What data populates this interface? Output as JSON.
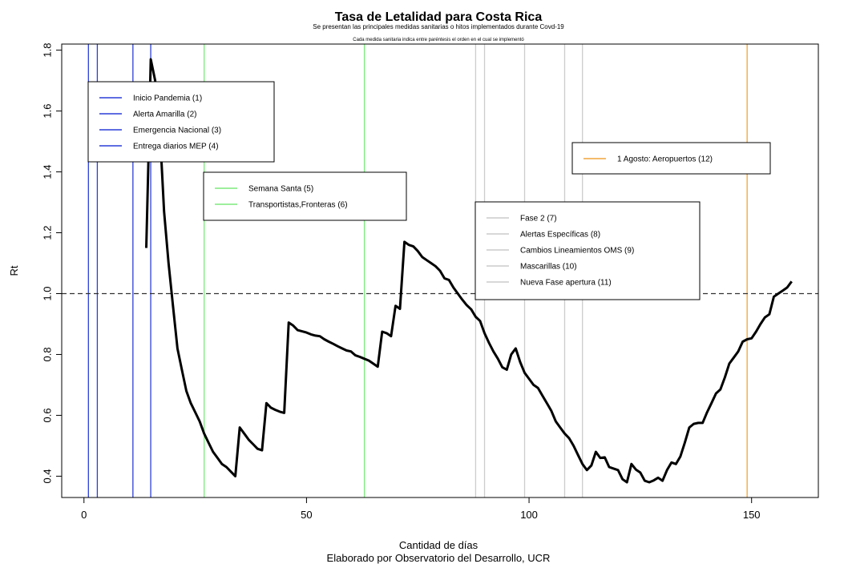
{
  "chart_data": {
    "type": "line",
    "title": "Tasa de Letalidad para Costa Rica",
    "subtitle": "Se presentan las principales medidas sanitarias o hitos implementados durante Covd-19",
    "note": "Cada medida sanitaria indica entre paréntesis el orden en el cual se implementó",
    "xlabel": "Cantidad de días",
    "caption": "Elaborado por Observatorio del Desarrollo, UCR",
    "ylabel": "Rt",
    "xlim": [
      -5,
      165
    ],
    "ylim": [
      0.33,
      1.82
    ],
    "xticks": [
      0,
      50,
      100,
      150
    ],
    "yticks": [
      0.4,
      0.6,
      0.8,
      1.0,
      1.2,
      1.4,
      1.6,
      1.8
    ],
    "xtick_labels": [
      "0",
      "50",
      "100",
      "150"
    ],
    "ytick_labels": [
      "0.4",
      "0.6",
      "0.8",
      "1.0",
      "1.2",
      "1.4",
      "1.6",
      "1.8"
    ],
    "reference_line": {
      "y": 1.0,
      "style": "dashed"
    },
    "series": [
      {
        "color": "#000000",
        "x": [
          14,
          14.5,
          15,
          16,
          17,
          18,
          19,
          20,
          21,
          22,
          23,
          24,
          25,
          26,
          27,
          28,
          29,
          30,
          31,
          32,
          33,
          34,
          35,
          36,
          37,
          38,
          39,
          40,
          41,
          42,
          43,
          44,
          45,
          46,
          47,
          48,
          49,
          50,
          51,
          52,
          53,
          54,
          55,
          56,
          57,
          58,
          59,
          60,
          61,
          62,
          63,
          64,
          65,
          66,
          67,
          68,
          69,
          70,
          71,
          72,
          73,
          74,
          75,
          76,
          77,
          78,
          79,
          80,
          81,
          82,
          83,
          84,
          85,
          86,
          87,
          88,
          89,
          90,
          91,
          92,
          93,
          94,
          95,
          96,
          97,
          98,
          99,
          100,
          101,
          102,
          103,
          104,
          105,
          106,
          107,
          108,
          109,
          110,
          111,
          112,
          113,
          114,
          115,
          116,
          117,
          118,
          119,
          120,
          121,
          122,
          123,
          124,
          125,
          126,
          127,
          128,
          129,
          130,
          131,
          132,
          133,
          134,
          135,
          136,
          137,
          138,
          139,
          140,
          141,
          142,
          143,
          144,
          145,
          146,
          147,
          148,
          149,
          150,
          151,
          152,
          153,
          154,
          155,
          156,
          157,
          158,
          159
        ],
        "y": [
          1.15,
          1.45,
          1.77,
          1.7,
          1.55,
          1.27,
          1.1,
          0.96,
          0.82,
          0.75,
          0.68,
          0.64,
          0.61,
          0.58,
          0.54,
          0.51,
          0.48,
          0.46,
          0.44,
          0.43,
          0.415,
          0.4,
          0.56,
          0.54,
          0.52,
          0.505,
          0.49,
          0.485,
          0.64,
          0.625,
          0.618,
          0.612,
          0.608,
          0.905,
          0.895,
          0.88,
          0.876,
          0.872,
          0.866,
          0.862,
          0.86,
          0.85,
          0.842,
          0.835,
          0.827,
          0.82,
          0.813,
          0.81,
          0.797,
          0.792,
          0.786,
          0.78,
          0.77,
          0.76,
          0.875,
          0.87,
          0.86,
          0.96,
          0.95,
          1.17,
          1.16,
          1.155,
          1.14,
          1.12,
          1.11,
          1.1,
          1.09,
          1.075,
          1.05,
          1.045,
          1.02,
          1.0,
          0.98,
          0.962,
          0.948,
          0.924,
          0.91,
          0.87,
          0.838,
          0.81,
          0.786,
          0.758,
          0.75,
          0.8,
          0.82,
          0.775,
          0.74,
          0.72,
          0.7,
          0.69,
          0.665,
          0.64,
          0.615,
          0.58,
          0.56,
          0.54,
          0.525,
          0.5,
          0.47,
          0.44,
          0.42,
          0.435,
          0.48,
          0.46,
          0.462,
          0.43,
          0.425,
          0.42,
          0.39,
          0.38,
          0.44,
          0.422,
          0.412,
          0.385,
          0.38,
          0.386,
          0.395,
          0.385,
          0.42,
          0.445,
          0.44,
          0.465,
          0.51,
          0.56,
          0.572,
          0.575,
          0.575,
          0.61,
          0.64,
          0.672,
          0.685,
          0.725,
          0.77,
          0.79,
          0.81,
          0.842,
          0.85,
          0.853,
          0.875,
          0.9,
          0.922,
          0.932,
          0.99,
          1.0,
          1.01,
          1.02,
          1.04
        ]
      }
    ],
    "events": [
      {
        "x": 1,
        "color": "#2b3fd8",
        "label": "Inicio Pandemia (1)"
      },
      {
        "x": 3,
        "color": "#2b3fd8",
        "label": "Alerta Amarilla (2)"
      },
      {
        "x": 11,
        "color": "#2b3fd8",
        "label": "Emergencia Nacional (3)"
      },
      {
        "x": 15,
        "color": "#2b3fd8",
        "label": "Entrega diarios MEP (4)"
      },
      {
        "x": 27,
        "color": "#7dea7d",
        "label": "Semana Santa (5)"
      },
      {
        "x": 63,
        "color": "#7dea7d",
        "label": "Transportistas,Fronteras (6)"
      },
      {
        "x": 88,
        "color": "#cccccc",
        "label": "Fase 2 (7)"
      },
      {
        "x": 90,
        "color": "#cccccc",
        "label": "Alertas Específicas (8)"
      },
      {
        "x": 99,
        "color": "#cccccc",
        "label": "Cambios Lineamientos OMS (9)"
      },
      {
        "x": 108,
        "color": "#cccccc",
        "label": "Mascarillas (10)"
      },
      {
        "x": 112,
        "color": "#cccccc",
        "label": "Nueva Fase apertura (11)"
      },
      {
        "x": 149,
        "color": "#f0a53a",
        "label": "1 Agosto: Aeropuertos (12)"
      }
    ],
    "legends": [
      {
        "placement": "top-left",
        "items": [
          0,
          1,
          2,
          3
        ]
      },
      {
        "placement": "upper-left-center",
        "items": [
          4,
          5
        ]
      },
      {
        "placement": "center-right",
        "items": [
          6,
          7,
          8,
          9,
          10
        ]
      },
      {
        "placement": "upper-right",
        "items": [
          11
        ]
      }
    ]
  }
}
